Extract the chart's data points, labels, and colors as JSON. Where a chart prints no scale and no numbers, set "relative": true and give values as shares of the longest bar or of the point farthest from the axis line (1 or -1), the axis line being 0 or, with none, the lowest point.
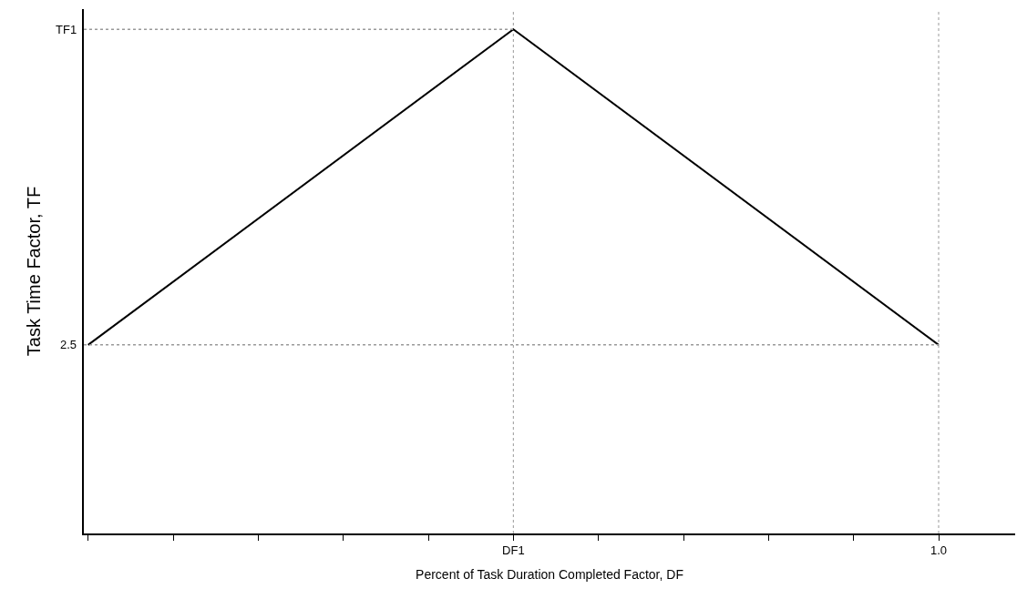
{
  "chart_data": {
    "type": "line",
    "relative": true,
    "xlabel": "Percent of Task Duration Completed Factor, DF",
    "ylabel": "Task Time Factor, TF",
    "categories": [
      null,
      "DF1",
      "1.0"
    ],
    "values": [
      0.374,
      1,
      0.374
    ],
    "color": "#000000",
    "marker": "none",
    "line_style": "solid",
    "grid": false,
    "legend": false,
    "annotations": [
      "TF1",
      "2.5"
    ],
    "ref_lines": [
      {
        "axis": "y",
        "value": 1,
        "color": "#999999",
        "line_style": "dotted"
      },
      {
        "axis": "y",
        "value": 0.374,
        "color": "#999999",
        "line_style": "dotted"
      },
      {
        "axis": "x",
        "value": "DF1",
        "color": "#999999",
        "line_style": "dotted"
      },
      {
        "axis": "x",
        "value": "1.0",
        "color": "#999999",
        "line_style": "dotted"
      }
    ]
  }
}
